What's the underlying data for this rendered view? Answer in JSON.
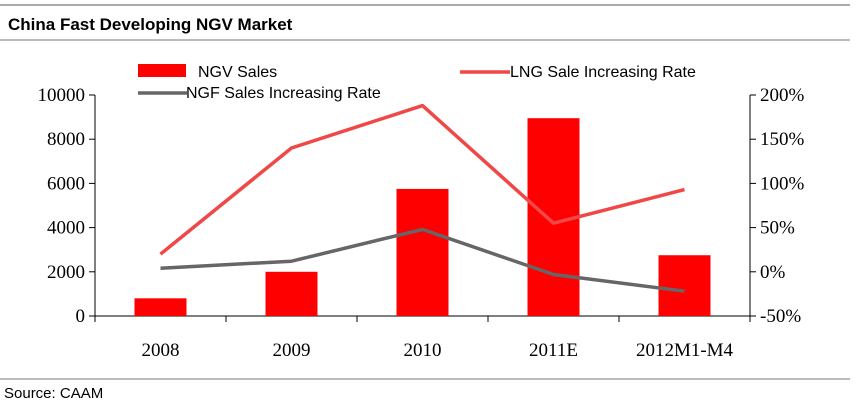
{
  "header": {
    "title": "China Fast Developing NGV Market"
  },
  "footer": {
    "source": "Source: CAAM"
  },
  "chart_data": {
    "type": "bar",
    "categories": [
      "2008",
      "2009",
      "2010",
      "2011E",
      "2012M1-M4"
    ],
    "series": [
      {
        "name": "NGV Sales",
        "type": "bar",
        "axis": "left",
        "color": "#ff0000",
        "values": [
          800,
          2000,
          5750,
          8950,
          2750
        ]
      },
      {
        "name": "LNG Sale Increasing Rate",
        "type": "line",
        "axis": "right",
        "unit": "%",
        "color": "#f04747",
        "values": [
          20,
          140,
          188,
          55,
          93
        ]
      },
      {
        "name": "NGF Sales Increasing Rate",
        "type": "line",
        "axis": "right",
        "unit": "%",
        "color": "#666666",
        "values": [
          4,
          12,
          48,
          -3,
          -22
        ]
      }
    ],
    "y_left": {
      "min": 0,
      "max": 10000,
      "ticks": [
        0,
        2000,
        4000,
        6000,
        8000,
        10000
      ]
    },
    "y_right": {
      "min": -50,
      "max": 200,
      "ticks": [
        "-50%",
        "0%",
        "50%",
        "100%",
        "150%",
        "200%"
      ]
    },
    "legend": {
      "placement": "top"
    },
    "grid": false
  }
}
